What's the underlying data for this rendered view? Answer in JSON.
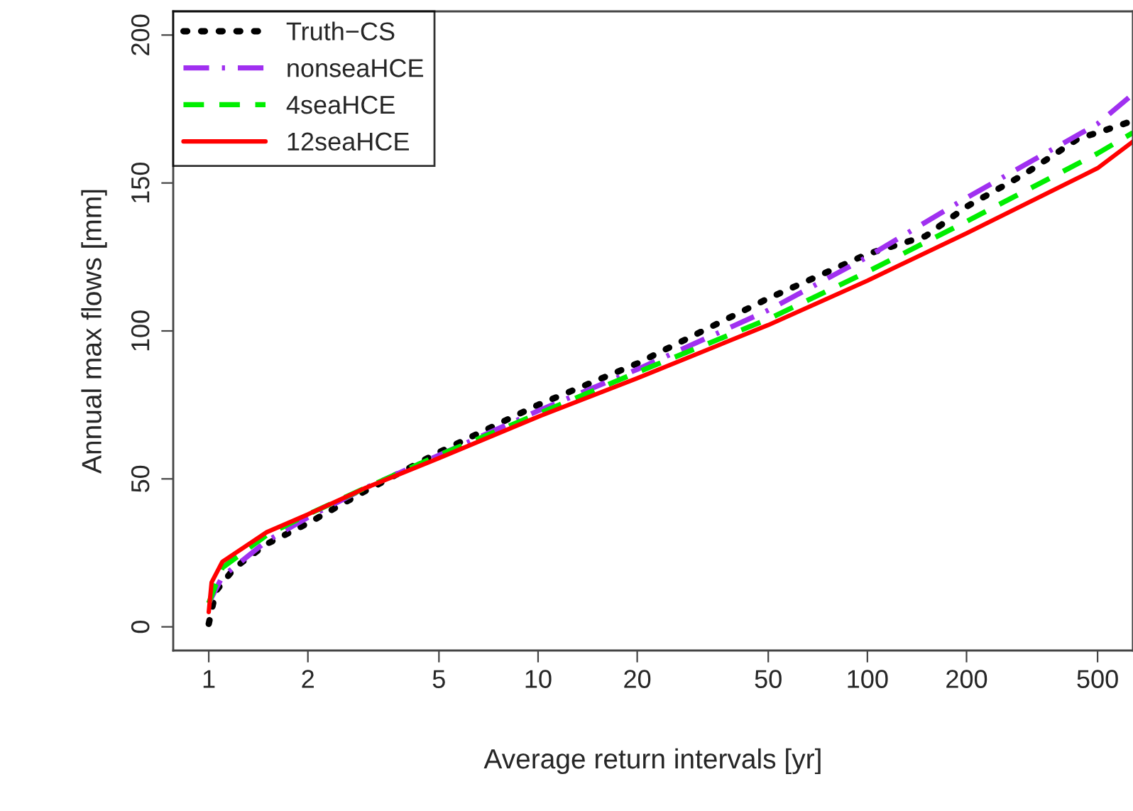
{
  "chart_data": {
    "type": "line",
    "xlabel": "Average return intervals [yr]",
    "ylabel": "Annual max flows [mm]",
    "log": "x",
    "xlim": [
      0.78,
      640
    ],
    "ylim": [
      -8,
      208
    ],
    "xticks": [
      1,
      2,
      5,
      10,
      20,
      50,
      100,
      200,
      500
    ],
    "yticks": [
      0,
      50,
      100,
      150,
      200
    ],
    "grid": false,
    "legend": "top left",
    "series": [
      {
        "name": "Truth−CS",
        "color": "#000000",
        "line_style": "dotted",
        "x": [
          1,
          1.05,
          1.2,
          1.5,
          2,
          3,
          5,
          10,
          20,
          50,
          100,
          150,
          200,
          300,
          437,
          500,
          640
        ],
        "values": [
          1,
          12,
          20,
          28,
          35,
          46,
          59,
          75,
          89,
          111,
          126,
          132,
          142,
          153,
          165,
          167,
          171
        ]
      },
      {
        "name": "nonseaHCE",
        "color": "#a030f0",
        "line_style": "dashdot",
        "x": [
          1,
          1.1,
          1.5,
          2,
          3,
          5,
          10,
          20,
          50,
          100,
          200,
          500,
          640
        ],
        "values": [
          8,
          17,
          29,
          37,
          47,
          58,
          73,
          87,
          107,
          125,
          145,
          170,
          180
        ]
      },
      {
        "name": "4seaHCE",
        "color": "#00ee00",
        "line_style": "dashed",
        "x": [
          1,
          1.1,
          1.5,
          2,
          3,
          5,
          10,
          20,
          50,
          100,
          200,
          500,
          640
        ],
        "values": [
          8,
          20,
          31,
          38,
          47,
          58,
          72,
          86,
          104,
          120,
          137,
          160,
          167
        ]
      },
      {
        "name": "12seaHCE",
        "color": "#ff0000",
        "line_style": "solid",
        "x": [
          1,
          1.02,
          1.1,
          1.5,
          2,
          3,
          5,
          10,
          20,
          50,
          100,
          200,
          500,
          640
        ],
        "values": [
          5,
          15,
          22,
          32,
          38,
          47,
          57,
          71,
          84,
          102,
          117,
          133,
          155,
          164
        ]
      }
    ]
  }
}
